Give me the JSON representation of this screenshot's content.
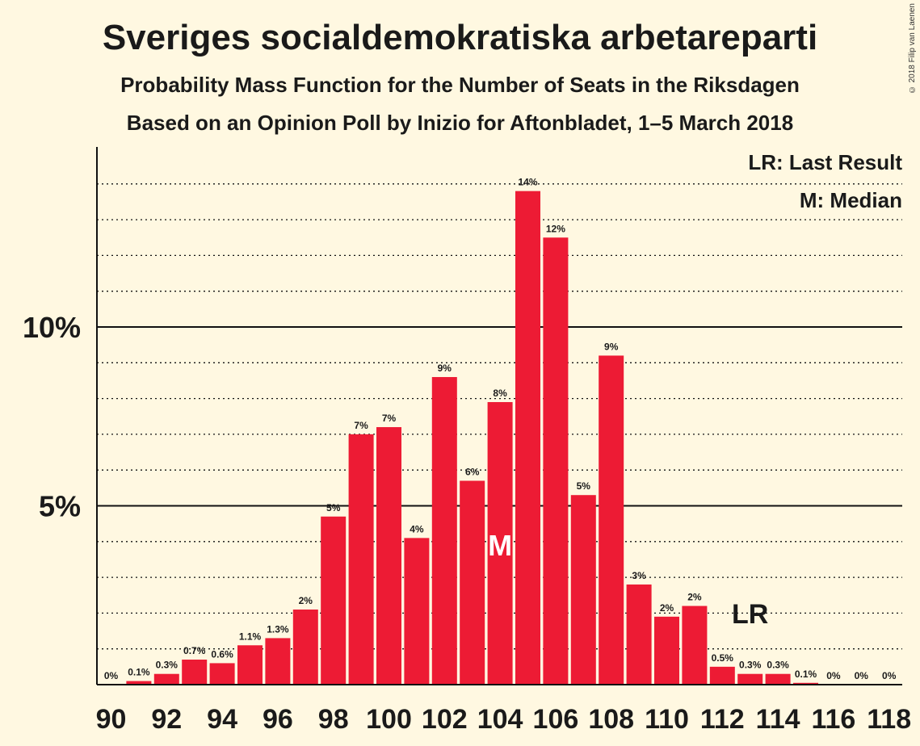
{
  "title": "Sveriges socialdemokratiska arbetareparti",
  "subtitle1": "Probability Mass Function for the Number of Seats in the Riksdagen",
  "subtitle2": "Based on an Opinion Poll by Inizio for Aftonbladet, 1–5 March 2018",
  "copyright": "© 2018 Filip van Laenen",
  "legend": {
    "last_result": "LR: Last Result",
    "median": "M: Median"
  },
  "colors": {
    "bar": "#ed1b34",
    "background": "#fff8e1",
    "text": "#1a1a1a"
  },
  "chart_data": {
    "type": "bar",
    "x": [
      90,
      91,
      92,
      93,
      94,
      95,
      96,
      97,
      98,
      99,
      100,
      101,
      102,
      103,
      104,
      105,
      106,
      107,
      108,
      109,
      110,
      111,
      112,
      113,
      114,
      115,
      116,
      117,
      118
    ],
    "values": [
      0,
      0.1,
      0.3,
      0.7,
      0.6,
      1.1,
      1.3,
      2.1,
      4.7,
      7.0,
      7.2,
      4.1,
      8.6,
      5.7,
      7.9,
      13.8,
      12.5,
      5.3,
      9.2,
      2.8,
      1.9,
      2.2,
      0.5,
      0.3,
      0.3,
      0.05,
      0,
      0,
      0
    ],
    "data_labels": [
      "0%",
      "0.1%",
      "0.3%",
      "0.7%",
      "0.6%",
      "1.1%",
      "1.3%",
      "2%",
      "5%",
      "7%",
      "7%",
      "4%",
      "9%",
      "6%",
      "8%",
      "14%",
      "12%",
      "5%",
      "9%",
      "3%",
      "2%",
      "2%",
      "0.5%",
      "0.3%",
      "0.3%",
      "0.1%",
      "0%",
      "0%",
      "0%"
    ],
    "xticks": [
      90,
      92,
      94,
      96,
      98,
      100,
      102,
      104,
      106,
      108,
      110,
      112,
      114,
      116,
      118
    ],
    "yticks": [
      {
        "value": 5,
        "label": "5%"
      },
      {
        "value": 10,
        "label": "10%"
      }
    ],
    "ylim": [
      0,
      15
    ],
    "median": {
      "seat": 104,
      "marker": "M"
    },
    "last_result": {
      "seat": 113,
      "marker": "LR"
    },
    "grid": "dotted every 1%, solid at 5% and 10%"
  }
}
